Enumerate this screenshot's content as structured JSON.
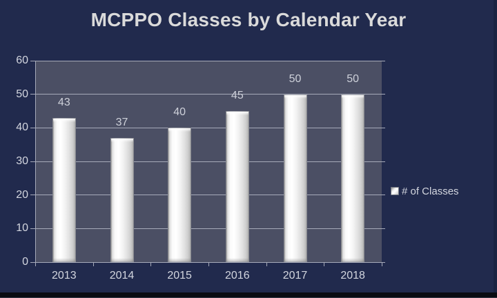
{
  "chart_data": {
    "type": "bar",
    "title": "MCPPO Classes by Calendar Year",
    "categories": [
      "2013",
      "2014",
      "2015",
      "2016",
      "2017",
      "2018"
    ],
    "series": [
      {
        "name": "# of Classes",
        "values": [
          43,
          37,
          40,
          45,
          50,
          50
        ]
      }
    ],
    "data_labels": [
      43,
      37,
      40,
      45,
      50,
      50
    ],
    "xlabel": "",
    "ylabel": "",
    "ylim": [
      0,
      60
    ],
    "yticks": [
      0,
      10,
      20,
      30,
      40,
      50,
      60
    ],
    "grid": "horizontal",
    "legend_position": "right"
  },
  "legend": {
    "label": "# of Classes"
  },
  "colors": {
    "bg": "#212a4d",
    "plot-bg": "#4b4f64",
    "grid": "#a7abba",
    "text": "#d3d6df",
    "title": "#dadada",
    "bar-light": "#ffffff",
    "bar-dark": "#a6a6a6"
  }
}
